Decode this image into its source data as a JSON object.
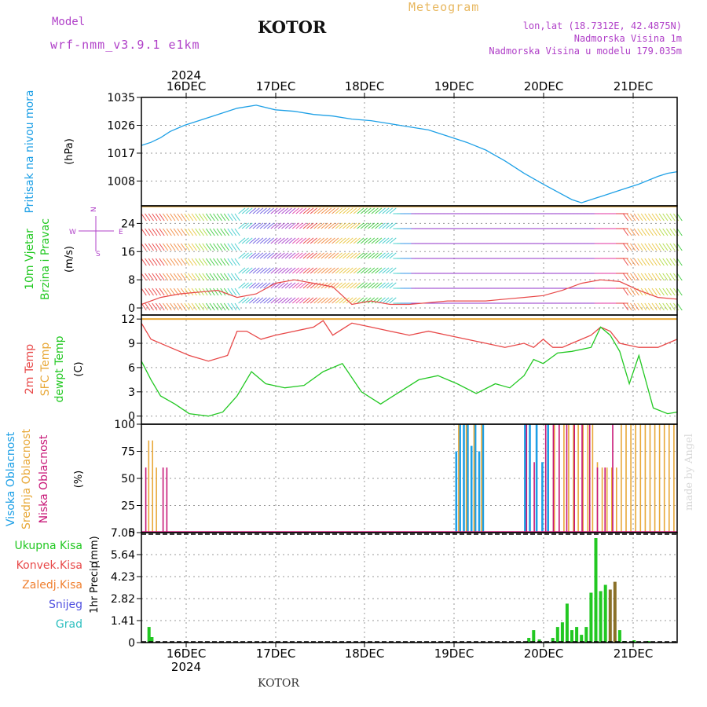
{
  "header": {
    "model_label": "Model",
    "model_name": "wrf-nmm_v3.9.1 e1km",
    "city": "KOTOR",
    "meteogram": "Meteogram",
    "coords": "lon,lat (18.7312E, 42.4875N)",
    "elevation": "Nadmorska Visina 1m",
    "model_elevation": "Nadmorska Visina u modelu 179.035m"
  },
  "footer": {
    "city": "KOTOR",
    "credit": "made by Angel"
  },
  "axis_top": {
    "year": "2024",
    "dates": [
      "16DEC",
      "17DEC",
      "18DEC",
      "19DEC",
      "20DEC",
      "21DEC"
    ]
  },
  "axis_bottom": {
    "year": "2024",
    "dates": [
      "16DEC",
      "17DEC",
      "18DEC",
      "19DEC",
      "20DEC",
      "21DEC"
    ]
  },
  "colors": {
    "pressure": "#1ea0e6",
    "temp2m": "#e84848",
    "sfc": "#e8a838",
    "dewpt": "#22c822",
    "high_cloud": "#1ea0e6",
    "mid_cloud": "#e8a838",
    "low_cloud": "#c81878",
    "total_precip": "#22c822",
    "conv": "#e84848",
    "frozen": "#f08030",
    "snow": "#5050e0",
    "grad": "#30c0c0"
  },
  "chart_data": [
    {
      "type": "line",
      "panel": "pressure",
      "ylabel_main": "Pritisak na nivou mora",
      "ylabel_unit": "(hPa)",
      "yticks": [
        "1035",
        "1026",
        "1017",
        "1008"
      ],
      "ylim": [
        1000,
        1035
      ],
      "x": [
        0,
        0.1,
        0.2,
        0.3,
        0.45,
        0.6,
        0.8,
        1.0,
        1.2,
        1.4,
        1.6,
        1.8,
        2.0,
        2.2,
        2.4,
        2.6,
        2.8,
        3.0,
        3.2,
        3.4,
        3.6,
        3.8,
        4.0,
        4.2,
        4.35,
        4.5,
        4.6,
        4.7,
        4.8,
        4.9,
        5.0,
        5.2,
        5.4,
        5.5,
        5.6
      ],
      "values": [
        1019.5,
        1020.5,
        1022,
        1024,
        1026,
        1027.5,
        1029.5,
        1031.5,
        1032.5,
        1031,
        1030.5,
        1029.5,
        1029,
        1028,
        1027.5,
        1026.5,
        1025.5,
        1024.5,
        1022.5,
        1020.5,
        1018,
        1014.5,
        1010.5,
        1007,
        1004.5,
        1002,
        1001,
        1002,
        1003,
        1004,
        1005,
        1007,
        1009.5,
        1010.5,
        1011
      ]
    },
    {
      "type": "barbs",
      "panel": "wind",
      "ylabel_main": "10m Vjetar",
      "ylabel_sub": "Brzina i Pravac",
      "ylabel_unit": "(m/s)",
      "compass": {
        "n": "N",
        "s": "S",
        "e": "E",
        "w": "W"
      },
      "yticks": [
        "24",
        "16",
        "8",
        "0"
      ],
      "ylim": [
        -2,
        29
      ],
      "x": [
        0,
        0.2,
        0.4,
        0.6,
        0.8,
        1.0,
        1.2,
        1.4,
        1.6,
        1.8,
        2.0,
        2.2,
        2.4,
        2.6,
        2.8,
        3.0,
        3.2,
        3.4,
        3.6,
        3.8,
        4.0,
        4.2,
        4.4,
        4.6,
        4.8,
        5.0,
        5.2,
        5.4,
        5.6
      ],
      "speed": [
        1,
        3,
        4,
        4.5,
        5,
        3,
        4,
        7,
        8,
        7,
        6,
        1,
        2,
        1,
        1,
        1.5,
        2,
        2,
        2,
        2.5,
        3,
        3.5,
        5,
        7,
        8,
        7.5,
        5,
        3,
        2.5
      ]
    },
    {
      "type": "line",
      "panel": "temperature",
      "ylabel_a": "2m Temp",
      "ylabel_b": "SFC Temp",
      "ylabel_c": "dewpt Temp",
      "ylabel_unit": "(C)",
      "yticks": [
        "12",
        "9",
        "6",
        "3",
        "0"
      ],
      "ylim": [
        -1,
        12.5
      ],
      "series": [
        {
          "name": "2m Temp",
          "x": [
            0,
            0.1,
            0.3,
            0.5,
            0.7,
            0.9,
            1.0,
            1.1,
            1.25,
            1.4,
            1.6,
            1.8,
            1.9,
            2.0,
            2.2,
            2.4,
            2.6,
            2.8,
            3.0,
            3.2,
            3.4,
            3.6,
            3.8,
            4.0,
            4.1,
            4.2,
            4.3,
            4.4,
            4.5,
            4.6,
            4.7,
            4.8,
            4.9,
            5.0,
            5.2,
            5.4,
            5.6
          ],
          "values": [
            11.5,
            9.5,
            8.5,
            7.5,
            6.8,
            7.5,
            10.5,
            10.5,
            9.5,
            10,
            10.5,
            11,
            11.8,
            10,
            11.5,
            11,
            10.5,
            10,
            10.5,
            10,
            9.5,
            9,
            8.5,
            9,
            8.5,
            9.5,
            8.5,
            8.5,
            9,
            9.5,
            10,
            11,
            10.5,
            9,
            8.5,
            8.5,
            9.5
          ]
        },
        {
          "name": "SFC Temp",
          "x": [
            0,
            5.6
          ],
          "values": [
            12,
            12
          ]
        },
        {
          "name": "dewpt Temp",
          "x": [
            0,
            0.1,
            0.2,
            0.35,
            0.5,
            0.7,
            0.85,
            1.0,
            1.15,
            1.3,
            1.5,
            1.7,
            1.9,
            2.1,
            2.3,
            2.5,
            2.7,
            2.9,
            3.1,
            3.3,
            3.5,
            3.7,
            3.85,
            4.0,
            4.1,
            4.2,
            4.35,
            4.5,
            4.7,
            4.8,
            4.9,
            5.0,
            5.1,
            5.2,
            5.35,
            5.5,
            5.6
          ],
          "values": [
            6.8,
            4.5,
            2.5,
            1.5,
            0.3,
            0,
            0.5,
            2.5,
            5.5,
            4,
            3.5,
            3.8,
            5.5,
            6.5,
            3,
            1.5,
            3,
            4.5,
            5,
            4,
            2.8,
            4,
            3.5,
            5,
            7,
            6.5,
            7.8,
            8,
            8.5,
            11,
            10,
            8,
            4,
            7.5,
            1,
            0.3,
            0.5
          ]
        }
      ]
    },
    {
      "type": "bar",
      "panel": "clouds",
      "ylabel_a": "Visoka Oblacnost",
      "ylabel_b": "Srednja Oblacnost",
      "ylabel_c": "Niska Oblacnost",
      "ylabel_unit": "(%)",
      "yticks": [
        "100",
        "75",
        "50",
        "25",
        "0"
      ],
      "ylim": [
        0,
        100
      ],
      "series": [
        {
          "name": "Visoka Oblacnost",
          "x": [
            3.28,
            3.32,
            3.36,
            3.4,
            3.44,
            3.48,
            3.52,
            3.56,
            4.0,
            4.05,
            4.12,
            4.18,
            4.24
          ],
          "values": [
            75,
            100,
            100,
            100,
            80,
            100,
            75,
            100,
            100,
            100,
            100,
            65,
            100
          ]
        },
        {
          "name": "Srednja Oblacnost",
          "x": [
            0.06,
            0.1,
            0.14,
            3.3,
            3.38,
            3.46,
            3.54,
            4.3,
            4.35,
            4.4,
            4.45,
            4.5,
            4.55,
            4.6,
            4.65,
            4.7,
            4.75,
            4.8,
            4.85,
            4.9,
            4.95,
            5.0,
            5.05,
            5.1,
            5.15,
            5.2,
            5.25,
            5.3,
            5.35,
            5.4,
            5.45,
            5.5,
            5.55
          ],
          "values": [
            85,
            85,
            60,
            100,
            100,
            100,
            100,
            100,
            100,
            100,
            100,
            100,
            100,
            100,
            100,
            100,
            65,
            60,
            60,
            60,
            60,
            100,
            100,
            100,
            100,
            100,
            100,
            100,
            100,
            100,
            100,
            100,
            100
          ]
        },
        {
          "name": "Niska Oblacnost",
          "x": [
            0.02,
            0.2,
            0.24,
            4.0,
            4.08,
            4.2,
            4.28,
            4.34,
            4.42,
            4.5,
            4.58,
            4.66,
            4.74,
            4.82,
            4.9
          ],
          "values": [
            60,
            60,
            60,
            100,
            65,
            100,
            100,
            100,
            100,
            100,
            100,
            100,
            60,
            60,
            100
          ]
        }
      ]
    },
    {
      "type": "bar",
      "panel": "precipitation",
      "legend": [
        "Ukupna Kisa",
        "Konvek.Kisa",
        "Zaledj.Kisa",
        "Snijeg",
        "Grad"
      ],
      "ylabel_main": "1hr Precip",
      "ylabel_unit": "(mm)",
      "yticks": [
        "7.05",
        "5.64",
        "4.23",
        "2.82",
        "1.41",
        "0"
      ],
      "ylim": [
        0,
        7.05
      ],
      "x": [
        0.08,
        0.11,
        4.05,
        4.1,
        4.16,
        4.3,
        4.35,
        4.4,
        4.45,
        4.5,
        4.55,
        4.6,
        4.65,
        4.7,
        4.75,
        4.8,
        4.85,
        4.9,
        4.95,
        5.0,
        5.05,
        5.15,
        5.3
      ],
      "values": [
        1.0,
        0.35,
        0.3,
        0.8,
        0.2,
        0.3,
        1.0,
        1.3,
        2.5,
        0.8,
        1.0,
        0.5,
        1.0,
        3.2,
        6.7,
        3.3,
        3.7,
        3.4,
        3.9,
        0.8,
        0.1,
        0.15,
        0.1
      ]
    }
  ]
}
